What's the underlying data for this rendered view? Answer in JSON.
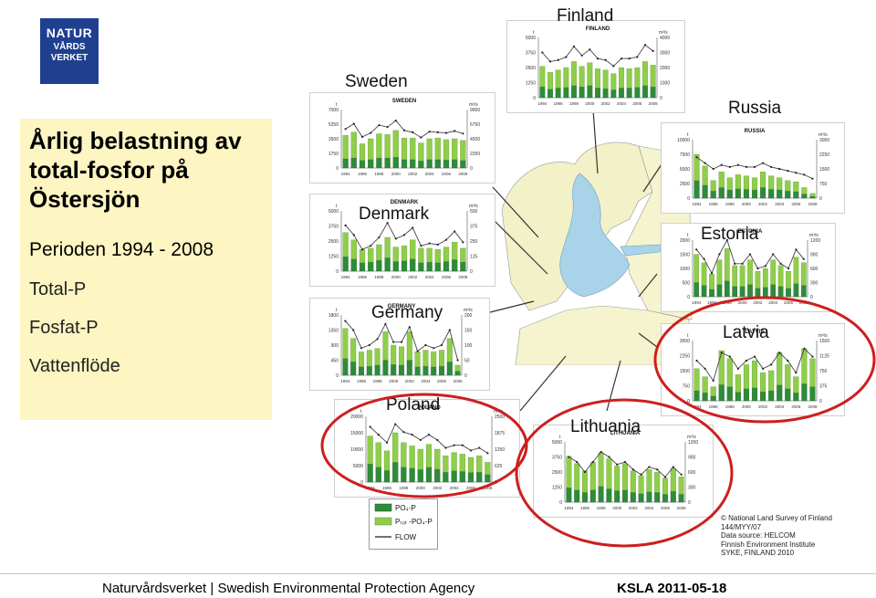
{
  "logo": {
    "line1": "NATUR",
    "line2": "VÅRDS",
    "line3": "VERKET"
  },
  "title": "Årlig belastning av total-fosfor på Östersjön",
  "subtitle": "Perioden 1994 - 2008",
  "legend_text": [
    "Total-P",
    "Fosfat-P",
    "Vattenflöde"
  ],
  "chart_legend": {
    "po4": "PO₄-P",
    "ptot": "Pₜₒₜ -PO₄-P",
    "flow": "FLOW"
  },
  "credit": [
    "© National Land Survey of Finland",
    "144/MYY/07",
    "Data source: HELCOM",
    "Finnish Environment Institute",
    "SYKE, FINLAND 2010"
  ],
  "footer": {
    "left": "Naturvårdsverket | Swedish Environmental Protection Agency",
    "right": "KSLA 2011-05-18"
  },
  "chart_data": [
    {
      "type": "bar",
      "country": "Finland",
      "inner_title": "FINLAND",
      "unit_left": "t",
      "unit_right": "m³/s",
      "years": [
        1994,
        1995,
        1996,
        1997,
        1998,
        1999,
        2000,
        2001,
        2002,
        2003,
        2004,
        2005,
        2006,
        2007,
        2008
      ],
      "ptot": [
        2600,
        2100,
        2300,
        2500,
        3000,
        2600,
        2900,
        2400,
        2300,
        2000,
        2500,
        2400,
        2500,
        3000,
        2700
      ],
      "po4": [
        900,
        700,
        800,
        850,
        1000,
        900,
        1000,
        800,
        750,
        650,
        800,
        800,
        850,
        1000,
        900
      ],
      "flow": [
        3000,
        2400,
        2500,
        2700,
        3400,
        2800,
        3200,
        2600,
        2500,
        2100,
        2600,
        2600,
        2700,
        3500,
        3100
      ],
      "ylim_left": [
        0,
        5000
      ],
      "ylim_right": [
        0,
        4000
      ]
    },
    {
      "type": "bar",
      "country": "Sweden",
      "inner_title": "SWEDEN",
      "unit_left": "t",
      "unit_right": "m³/s",
      "years": [
        1994,
        1995,
        1996,
        1997,
        1998,
        1999,
        2000,
        2001,
        2002,
        2003,
        2004,
        2005,
        2006,
        2007,
        2008
      ],
      "ptot": [
        3900,
        4300,
        2900,
        3500,
        4100,
        4000,
        4500,
        3600,
        3600,
        3000,
        3500,
        3600,
        3400,
        3500,
        3300
      ],
      "po4": [
        1100,
        1200,
        900,
        1000,
        1200,
        1200,
        1300,
        1000,
        1000,
        850,
        1000,
        1000,
        950,
        1000,
        900
      ],
      "flow": [
        6000,
        6800,
        4800,
        5400,
        6600,
        6300,
        7300,
        5800,
        5500,
        4700,
        5600,
        5500,
        5400,
        5700,
        5300
      ],
      "ylim_left": [
        0,
        7000
      ],
      "ylim_right": [
        0,
        9000
      ]
    },
    {
      "type": "bar",
      "country": "Denmark",
      "inner_title": "DENMARK",
      "unit_left": "t",
      "unit_right": "m³/s",
      "years": [
        1994,
        1995,
        1996,
        1997,
        1998,
        1999,
        2000,
        2001,
        2002,
        2003,
        2004,
        2005,
        2006,
        2007,
        2008
      ],
      "ptot": [
        3200,
        2600,
        1800,
        1900,
        2200,
        2800,
        2000,
        2100,
        2600,
        1900,
        1900,
        1800,
        2000,
        2400,
        1900
      ],
      "po4": [
        1200,
        1000,
        700,
        750,
        900,
        1100,
        800,
        850,
        1000,
        700,
        750,
        700,
        800,
        950,
        750
      ],
      "flow": [
        380,
        300,
        180,
        210,
        280,
        400,
        270,
        300,
        360,
        210,
        230,
        220,
        260,
        330,
        240
      ],
      "ylim_left": [
        0,
        5000
      ],
      "ylim_right": [
        0,
        500
      ]
    },
    {
      "type": "bar",
      "country": "Germany",
      "inner_title": "GERMANY",
      "unit_left": "t",
      "unit_right": "m³/s",
      "years": [
        1994,
        1995,
        1996,
        1997,
        1998,
        1999,
        2000,
        2001,
        2002,
        2003,
        2004,
        2005,
        2006,
        2007,
        2008
      ],
      "ptot": [
        1400,
        1100,
        700,
        750,
        800,
        1300,
        900,
        850,
        1300,
        700,
        750,
        700,
        750,
        1100,
        300
      ],
      "po4": [
        500,
        400,
        250,
        270,
        300,
        450,
        320,
        300,
        450,
        250,
        270,
        250,
        270,
        400,
        120
      ],
      "flow": [
        180,
        150,
        90,
        100,
        120,
        170,
        110,
        110,
        160,
        80,
        100,
        90,
        100,
        150,
        50
      ],
      "ylim_left": [
        0,
        1800
      ],
      "ylim_right": [
        0,
        200
      ]
    },
    {
      "type": "bar",
      "country": "Poland",
      "inner_title": "POLAND",
      "unit_left": "t",
      "unit_right": "m³/s",
      "years": [
        1994,
        1995,
        1996,
        1997,
        1998,
        1999,
        2000,
        2001,
        2002,
        2003,
        2004,
        2005,
        2006,
        2007,
        2008
      ],
      "ptot": [
        14000,
        12000,
        9500,
        15000,
        12000,
        11000,
        10000,
        11500,
        10000,
        8000,
        9000,
        8500,
        7500,
        8000,
        6000
      ],
      "po4": [
        5500,
        4500,
        3500,
        6000,
        4500,
        4200,
        3800,
        4500,
        3900,
        3000,
        3400,
        3200,
        2900,
        3000,
        2300
      ],
      "flow": [
        2100,
        1800,
        1500,
        2200,
        1900,
        1800,
        1600,
        1800,
        1600,
        1300,
        1400,
        1400,
        1200,
        1300,
        1100
      ],
      "ylim_left": [
        0,
        20000
      ],
      "ylim_right": [
        0,
        2500
      ]
    },
    {
      "type": "bar",
      "country": "Russia",
      "inner_title": "RUSSIA",
      "unit_left": "t",
      "unit_right": "m³/s",
      "years": [
        1994,
        1995,
        1996,
        1997,
        1998,
        1999,
        2000,
        2001,
        2002,
        2003,
        2004,
        2005,
        2006,
        2007,
        2008
      ],
      "ptot": [
        7500,
        5500,
        3000,
        4500,
        3500,
        4000,
        3800,
        3500,
        4500,
        3800,
        3500,
        3000,
        2800,
        1800,
        800
      ],
      "po4": [
        3000,
        2200,
        1200,
        1800,
        1400,
        1600,
        1500,
        1400,
        1800,
        1500,
        1400,
        1200,
        1100,
        700,
        300
      ],
      "flow": [
        2100,
        1800,
        1500,
        1700,
        1600,
        1700,
        1600,
        1600,
        1800,
        1600,
        1500,
        1400,
        1300,
        1200,
        1000
      ],
      "ylim_left": [
        0,
        10000
      ],
      "ylim_right": [
        0,
        3000
      ]
    },
    {
      "type": "bar",
      "country": "Estonia",
      "inner_title": "ESTONIA",
      "unit_left": "t",
      "unit_right": "m³/s",
      "years": [
        1994,
        1995,
        1996,
        1997,
        1998,
        1999,
        2000,
        2001,
        2002,
        2003,
        2004,
        2005,
        2006,
        2007,
        2008
      ],
      "ptot": [
        1500,
        1200,
        800,
        1300,
        1700,
        1100,
        1100,
        1300,
        900,
        1000,
        1300,
        1100,
        900,
        1400,
        1200
      ],
      "po4": [
        500,
        400,
        260,
        430,
        560,
        360,
        360,
        430,
        300,
        330,
        430,
        360,
        300,
        460,
        400
      ],
      "flow": [
        1000,
        800,
        500,
        900,
        1200,
        700,
        700,
        900,
        600,
        650,
        900,
        700,
        600,
        1000,
        800
      ],
      "ylim_left": [
        0,
        2000
      ],
      "ylim_right": [
        0,
        1200
      ]
    },
    {
      "type": "bar",
      "country": "Latvia",
      "inner_title": "LATVIA",
      "unit_left": "t",
      "unit_right": "m³/s",
      "years": [
        1994,
        1995,
        1996,
        1997,
        1998,
        1999,
        2000,
        2001,
        2002,
        2003,
        2004,
        2005,
        2006,
        2007,
        2008
      ],
      "ptot": [
        1600,
        1200,
        700,
        2500,
        2100,
        1300,
        1800,
        2000,
        1400,
        1500,
        2400,
        1800,
        1200,
        2600,
        2100
      ],
      "po4": [
        500,
        400,
        230,
        800,
        700,
        430,
        600,
        650,
        450,
        500,
        780,
        600,
        400,
        850,
        700
      ],
      "flow": [
        1000,
        800,
        500,
        1200,
        1100,
        800,
        1000,
        1100,
        800,
        900,
        1200,
        1000,
        700,
        1300,
        1100
      ],
      "ylim_left": [
        0,
        3000
      ],
      "ylim_right": [
        0,
        1500
      ]
    },
    {
      "type": "bar",
      "country": "Lithuania",
      "inner_title": "LITHUANIA",
      "unit_left": "t",
      "unit_right": "m³/s",
      "years": [
        1994,
        1995,
        1996,
        1997,
        1998,
        1999,
        2000,
        2001,
        2002,
        2003,
        2004,
        2005,
        2006,
        2007,
        2008
      ],
      "ptot": [
        3800,
        3200,
        2600,
        3300,
        4100,
        3600,
        3000,
        3200,
        2600,
        2200,
        2700,
        2500,
        2000,
        2800,
        2100
      ],
      "po4": [
        1200,
        1000,
        800,
        1000,
        1300,
        1100,
        950,
        1000,
        800,
        700,
        850,
        800,
        650,
        900,
        650
      ],
      "flow": [
        900,
        800,
        600,
        800,
        1000,
        900,
        750,
        800,
        650,
        550,
        700,
        650,
        500,
        700,
        550
      ],
      "ylim_left": [
        0,
        5000
      ],
      "ylim_right": [
        0,
        1200
      ]
    }
  ]
}
